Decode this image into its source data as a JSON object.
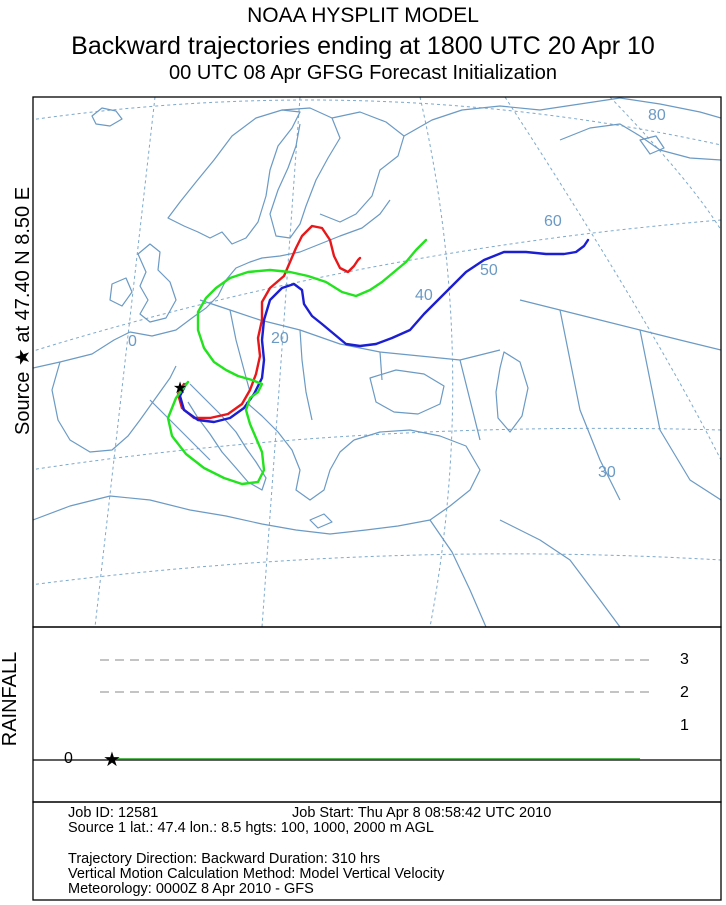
{
  "header": {
    "line1": "NOAA HYSPLIT MODEL",
    "line2": "Backward trajectories ending at 1800 UTC 20 Apr 10",
    "line3": "00 UTC 08 Apr    GFSG  Forecast Initialization"
  },
  "side_label": "Source ★ at   47.40 N    8.50 E",
  "map": {
    "lat_labels": [
      "80",
      "60",
      "50",
      "40",
      "30",
      "20",
      "0"
    ],
    "colors": {
      "coast": "#6b9ac4",
      "grid": "#7da9cc",
      "red": "#e8181a",
      "blue": "#1b1ed1",
      "green": "#22e31d"
    }
  },
  "rainfall": {
    "label": "RAINFALL",
    "ticks": [
      "3",
      "2",
      "1",
      "0"
    ]
  },
  "info": {
    "job_id": "Job ID: 12581",
    "job_start": "Job Start: Thu Apr  8 08:58:42 UTC 2010",
    "source": "Source 1 lat.: 47.4  lon.: 8.5  hgts: 100, 1000, 2000 m AGL",
    "direction": "Trajectory Direction: Backward      Duration: 310 hrs",
    "vertical": "Vertical Motion Calculation Method:       Model Vertical Velocity",
    "meteorology": "Meteorology: 0000Z  8 Apr 2010 - GFS"
  }
}
